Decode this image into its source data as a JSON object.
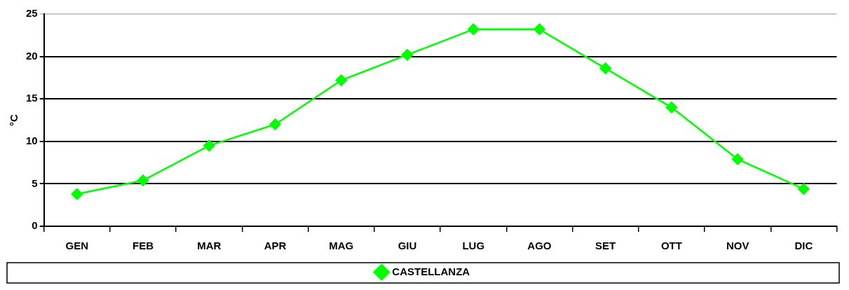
{
  "chart_data": {
    "type": "line",
    "ylabel": "°C",
    "categories": [
      "GEN",
      "FEB",
      "MAR",
      "APR",
      "MAG",
      "GIU",
      "LUG",
      "AGO",
      "SET",
      "OTT",
      "NOV",
      "DIC"
    ],
    "series": [
      {
        "name": "CASTELLANZA",
        "color": "#00ff00",
        "values": [
          3.8,
          5.4,
          9.5,
          12.0,
          17.2,
          20.2,
          23.2,
          23.2,
          18.6,
          14.0,
          7.9,
          4.4
        ]
      }
    ],
    "ylim": [
      0,
      25
    ],
    "yticks": [
      0,
      5,
      10,
      15,
      20,
      25
    ],
    "grid": "y",
    "legend": "bottom",
    "marker": "diamond",
    "line_style": "solid"
  }
}
